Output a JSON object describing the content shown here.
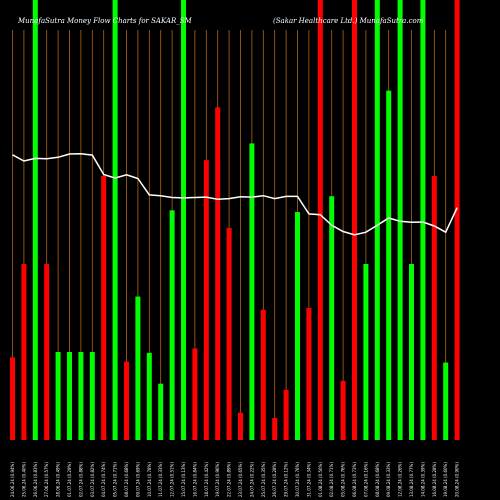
{
  "chart_data": {
    "type": "bar",
    "title": "MunafaSutra Money Flow Charts for SAKAR_SM",
    "subtitle": "(Sakar Healthcare Ltd.) MunafaSutra.com",
    "categories": [
      "20.08.24 (0.90%)",
      "19.08.24 (0.60%)",
      "16.08.24 (0.28%)",
      "14.08.24 (0.39%)",
      "13.08.24 (0.77%)",
      "12.08.24 (0.26%)",
      "09.08.24 (0.33%)",
      "08.08.24 (0.68%)",
      "07.08.24 (0.16%)",
      "06.08.24 (0.73%)",
      "05.08.24 (0.76%)",
      "02.08.24 (0.71%)",
      "01.08.24 (0.50%)",
      "31.07.24 (0.34%)",
      "30.07.24 (0.76%)",
      "29.07.24 (0.12%)",
      "26.07.24 (0.28%)",
      "25.07.24 (0.35%)",
      "24.07.24 (0.22%)",
      "23.07.24 (0.65%)",
      "22.07.24 (0.89%)",
      "19.07.24 (0.96%)",
      "18.07.24 (0.42%)",
      "16.07.24 (0.84%)",
      "15.07.24 (0.13%)",
      "12.07.24 (0.51%)",
      "11.07.24 (0.33%)",
      "10.07.24 (0.78%)",
      "09.07.24 (0.69%)",
      "08.07.24 (0.68%)",
      "05.07.24 (0.71%)",
      "04.07.24 (0.74%)",
      "03.07.24 (0.82%)",
      "02.07.24 (0.88%)",
      "01.07.24 (0.29%)",
      "28.06.24 (0.49%)",
      "27.06.24 (0.57%)",
      "26.06.24 (0.83%)",
      "25.06.24 (0.40%)",
      "24.06.24 (0.94%)"
    ],
    "values": [
      500,
      88,
      300,
      500,
      200,
      500,
      397,
      500,
      200,
      500,
      67,
      277,
      500,
      150,
      259,
      57,
      25,
      148,
      337,
      31,
      241,
      378,
      318,
      104,
      500,
      261,
      64,
      99,
      163,
      89,
      500,
      300,
      100,
      100,
      100,
      100,
      200,
      500,
      200,
      94
    ],
    "colors": [
      "#ff0000",
      "#00ff00",
      "#ff0000",
      "#00ff00",
      "#00ff00",
      "#00ff00",
      "#00ff00",
      "#00ff00",
      "#00ff00",
      "#ff0000",
      "#ff0000",
      "#00ff00",
      "#ff0000",
      "#ff0000",
      "#00ff00",
      "#ff0000",
      "#ff0000",
      "#ff0000",
      "#00ff00",
      "#ff0000",
      "#ff0000",
      "#ff0000",
      "#ff0000",
      "#ff0000",
      "#00ff00",
      "#00ff00",
      "#00ff00",
      "#00ff00",
      "#00ff00",
      "#ff0000",
      "#00ff00",
      "#ff0000",
      "#00ff00",
      "#00ff00",
      "#00ff00",
      "#00ff00",
      "#ff0000",
      "#00ff00",
      "#ff0000",
      "#ff0000"
    ],
    "price_line": [
      50.2,
      43.5,
      45.2,
      46.3,
      46.2,
      46.5,
      47.4,
      45.4,
      43.5,
      42.8,
      43.7,
      45.4,
      48.3,
      48.5,
      53.3,
      53.3,
      52.7,
      53.5,
      53.1,
      53.2,
      52.7,
      52.5,
      53.1,
      53.0,
      52.9,
      53.0,
      53.5,
      53.7,
      58.2,
      59.2,
      58.3,
      59.3,
      64.6,
      65.0,
      64.9,
      64.0,
      63.6,
      63.7,
      63.0,
      64.7
    ],
    "price_ylim": [
      40,
      66
    ],
    "ylim": [
      0,
      500
    ],
    "bar_color_up": "#00ff00",
    "bar_color_down": "#ff0000",
    "gridline_color": "#b3661a",
    "background": "#000000",
    "grid": true
  }
}
